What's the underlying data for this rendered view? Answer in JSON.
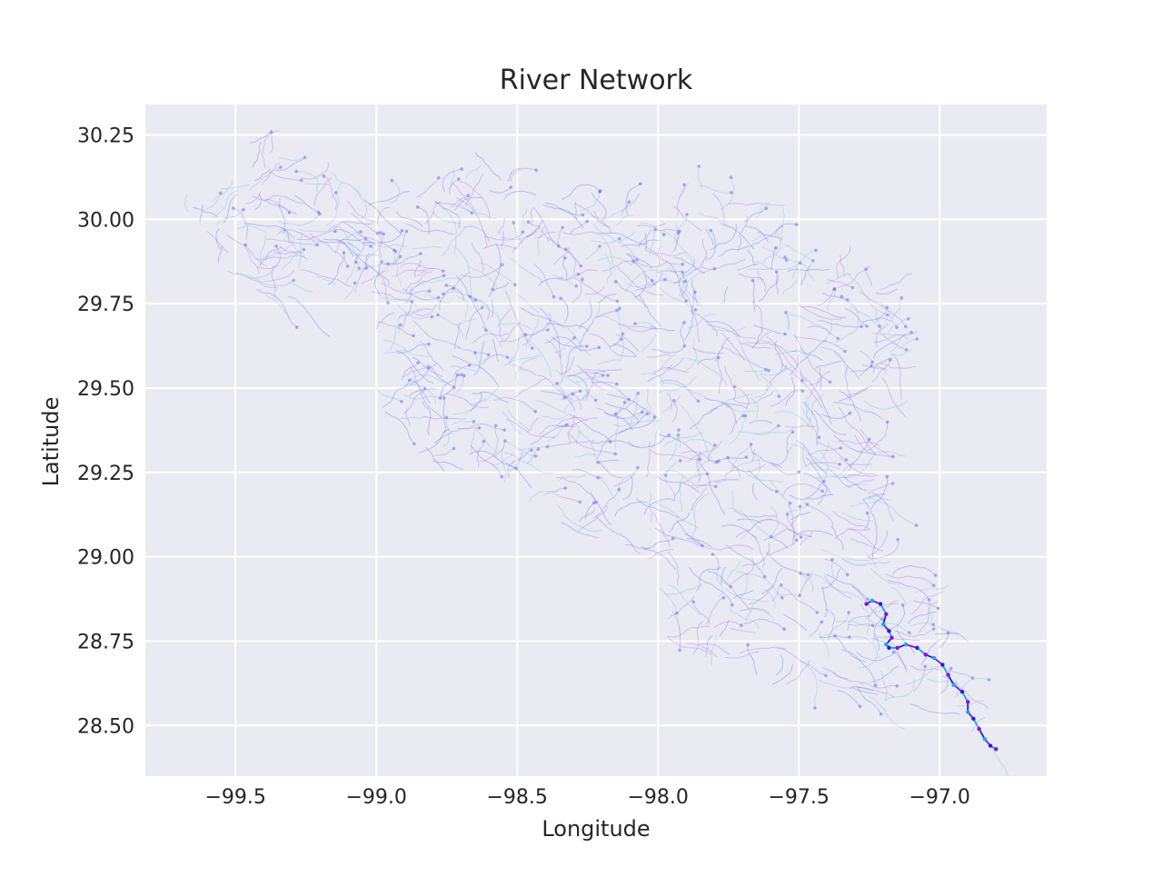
{
  "chart_data": {
    "type": "line",
    "title": "River Network",
    "xlabel": "Longitude",
    "ylabel": "Latitude",
    "xlim": [
      -99.82,
      -96.62
    ],
    "ylim": [
      28.35,
      30.34
    ],
    "xticks": [
      -99.5,
      -99.0,
      -98.5,
      -98.0,
      -97.5,
      -97.0
    ],
    "xtick_labels": [
      "−99.5",
      "−99.0",
      "−98.5",
      "−98.0",
      "−97.5",
      "−97.0"
    ],
    "yticks": [
      28.5,
      28.75,
      29.0,
      29.25,
      29.5,
      29.75,
      30.0,
      30.25
    ],
    "ytick_labels": [
      "28.50",
      "28.75",
      "29.00",
      "29.25",
      "29.50",
      "29.75",
      "30.00",
      "30.25"
    ],
    "grid": true,
    "legend": "none",
    "colors": {
      "background": "#eaeaf2",
      "grid": "#ffffff",
      "network": [
        "#5a6bff",
        "#a070e8",
        "#70c0e0"
      ],
      "highlight": [
        "#2020e0",
        "#8a10d8",
        "#18a8e8"
      ]
    },
    "basin_outline": [
      [
        -99.67,
        30.08
      ],
      [
        -99.58,
        30.1
      ],
      [
        -99.5,
        30.15
      ],
      [
        -99.45,
        30.23
      ],
      [
        -99.35,
        30.22
      ],
      [
        -99.22,
        30.12
      ],
      [
        -99.13,
        30.06
      ],
      [
        -99.05,
        30.09
      ],
      [
        -98.95,
        30.07
      ],
      [
        -98.8,
        30.08
      ],
      [
        -98.7,
        30.13
      ],
      [
        -98.55,
        30.12
      ],
      [
        -98.42,
        30.1
      ],
      [
        -98.3,
        30.06
      ],
      [
        -98.15,
        30.04
      ],
      [
        -98.03,
        30.0
      ],
      [
        -97.95,
        30.05
      ],
      [
        -97.85,
        30.1
      ],
      [
        -97.75,
        30.05
      ],
      [
        -97.65,
        30.0
      ],
      [
        -97.55,
        29.94
      ],
      [
        -97.48,
        29.86
      ],
      [
        -97.42,
        29.84
      ],
      [
        -97.35,
        29.88
      ],
      [
        -97.25,
        29.82
      ],
      [
        -97.15,
        29.77
      ],
      [
        -97.1,
        29.7
      ],
      [
        -97.16,
        29.58
      ],
      [
        -97.25,
        29.48
      ],
      [
        -97.25,
        29.3
      ],
      [
        -97.2,
        29.15
      ],
      [
        -97.15,
        29.0
      ],
      [
        -97.05,
        28.88
      ],
      [
        -97.0,
        28.82
      ],
      [
        -96.95,
        28.7
      ],
      [
        -96.92,
        28.55
      ],
      [
        -96.85,
        28.5
      ],
      [
        -96.8,
        28.44
      ],
      [
        -96.9,
        28.47
      ],
      [
        -97.05,
        28.54
      ],
      [
        -97.25,
        28.58
      ],
      [
        -97.45,
        28.6
      ],
      [
        -97.65,
        28.62
      ],
      [
        -97.85,
        28.68
      ],
      [
        -97.98,
        28.75
      ],
      [
        -98.05,
        28.9
      ],
      [
        -98.15,
        29.0
      ],
      [
        -98.3,
        29.08
      ],
      [
        -98.45,
        29.15
      ],
      [
        -98.58,
        29.22
      ],
      [
        -98.75,
        29.25
      ],
      [
        -98.9,
        29.32
      ],
      [
        -99.0,
        29.4
      ],
      [
        -99.0,
        29.55
      ],
      [
        -99.0,
        29.65
      ],
      [
        -99.05,
        29.74
      ],
      [
        -99.2,
        29.78
      ],
      [
        -99.38,
        29.74
      ],
      [
        -99.5,
        29.8
      ],
      [
        -99.6,
        29.9
      ],
      [
        -99.68,
        30.0
      ]
    ],
    "main_channel": [
      [
        -97.26,
        28.86
      ],
      [
        -97.24,
        28.87
      ],
      [
        -97.21,
        28.86
      ],
      [
        -97.19,
        28.83
      ],
      [
        -97.2,
        28.8
      ],
      [
        -97.18,
        28.78
      ],
      [
        -97.17,
        28.76
      ],
      [
        -97.19,
        28.74
      ],
      [
        -97.18,
        28.73
      ],
      [
        -97.15,
        28.73
      ],
      [
        -97.12,
        28.74
      ],
      [
        -97.08,
        28.73
      ],
      [
        -97.05,
        28.71
      ],
      [
        -97.02,
        28.7
      ],
      [
        -96.99,
        28.68
      ],
      [
        -96.97,
        28.65
      ],
      [
        -96.95,
        28.62
      ],
      [
        -96.92,
        28.6
      ],
      [
        -96.9,
        28.57
      ],
      [
        -96.9,
        28.54
      ],
      [
        -96.88,
        28.52
      ],
      [
        -96.86,
        28.49
      ],
      [
        -96.84,
        28.46
      ],
      [
        -96.82,
        28.44
      ],
      [
        -96.8,
        28.43
      ]
    ]
  }
}
